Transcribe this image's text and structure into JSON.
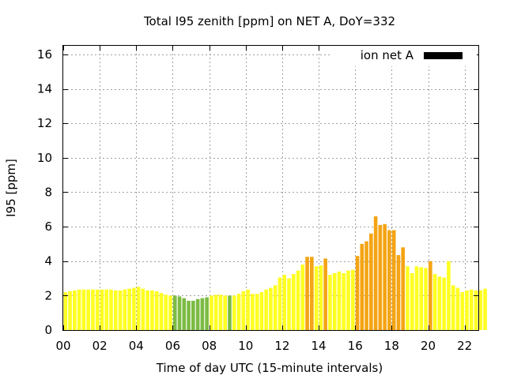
{
  "chart_data": {
    "type": "bar",
    "title": "Total I95 zenith [ppm] on NET A, DoY=332",
    "xlabel": "Time of day UTC (15-minute intervals)",
    "ylabel": "I95 [ppm]",
    "ylim": [
      0,
      16.5
    ],
    "xlim": [
      0,
      22.75
    ],
    "yticks": [
      0,
      2,
      4,
      6,
      8,
      10,
      12,
      14,
      16
    ],
    "xticks": [
      0,
      2,
      4,
      6,
      8,
      10,
      12,
      14,
      16,
      18,
      20,
      22
    ],
    "xtick_labels": [
      "00",
      "02",
      "04",
      "06",
      "08",
      "10",
      "12",
      "14",
      "16",
      "18",
      "20",
      "22"
    ],
    "grid": true,
    "legend": {
      "label": "ion net A",
      "position": "top-right",
      "color": "#000000"
    },
    "bar_width_hours": 0.2,
    "interval_hours": 0.25,
    "colors": {
      "green": "#7cbb44",
      "yellow": "#ffff22",
      "orange": "#f4a414"
    },
    "values": [
      2.2,
      2.25,
      2.3,
      2.35,
      2.35,
      2.35,
      2.35,
      2.35,
      2.35,
      2.35,
      2.35,
      2.3,
      2.3,
      2.35,
      2.4,
      2.45,
      2.5,
      2.4,
      2.3,
      2.3,
      2.25,
      2.15,
      2.05,
      2.0,
      2.0,
      1.95,
      1.85,
      1.7,
      1.7,
      1.8,
      1.85,
      1.9,
      2.0,
      2.05,
      2.05,
      2.0,
      2.0,
      2.0,
      2.1,
      2.25,
      2.35,
      2.1,
      2.1,
      2.2,
      2.35,
      2.45,
      2.6,
      3.05,
      3.2,
      3.0,
      3.25,
      3.45,
      3.8,
      4.25,
      4.25,
      3.7,
      3.75,
      4.15,
      3.2,
      3.3,
      3.4,
      3.3,
      3.45,
      3.5,
      4.3,
      5.0,
      5.15,
      5.6,
      6.6,
      6.1,
      6.15,
      5.8,
      5.8,
      4.35,
      4.8,
      3.7,
      3.3,
      3.7,
      3.65,
      3.6,
      4.0,
      3.25,
      3.1,
      3.05,
      4.0,
      2.6,
      2.45,
      2.2,
      2.3,
      2.35,
      2.3,
      2.3,
      2.4
    ],
    "bar_colors": [
      "yellow",
      "yellow",
      "yellow",
      "yellow",
      "yellow",
      "yellow",
      "yellow",
      "yellow",
      "yellow",
      "yellow",
      "yellow",
      "yellow",
      "yellow",
      "yellow",
      "yellow",
      "yellow",
      "yellow",
      "yellow",
      "yellow",
      "yellow",
      "yellow",
      "yellow",
      "yellow",
      "yellow",
      "green",
      "green",
      "green",
      "green",
      "green",
      "green",
      "green",
      "green",
      "yellow",
      "yellow",
      "yellow",
      "yellow",
      "green",
      "yellow",
      "yellow",
      "yellow",
      "yellow",
      "yellow",
      "yellow",
      "yellow",
      "yellow",
      "yellow",
      "yellow",
      "yellow",
      "yellow",
      "yellow",
      "yellow",
      "yellow",
      "yellow",
      "orange",
      "orange",
      "yellow",
      "yellow",
      "orange",
      "yellow",
      "yellow",
      "yellow",
      "yellow",
      "yellow",
      "yellow",
      "orange",
      "orange",
      "orange",
      "orange",
      "orange",
      "orange",
      "orange",
      "orange",
      "orange",
      "orange",
      "orange",
      "yellow",
      "yellow",
      "yellow",
      "yellow",
      "yellow",
      "orange",
      "yellow",
      "yellow",
      "yellow",
      "yellow",
      "yellow",
      "yellow",
      "yellow",
      "yellow",
      "yellow",
      "yellow",
      "yellow",
      "yellow"
    ]
  }
}
